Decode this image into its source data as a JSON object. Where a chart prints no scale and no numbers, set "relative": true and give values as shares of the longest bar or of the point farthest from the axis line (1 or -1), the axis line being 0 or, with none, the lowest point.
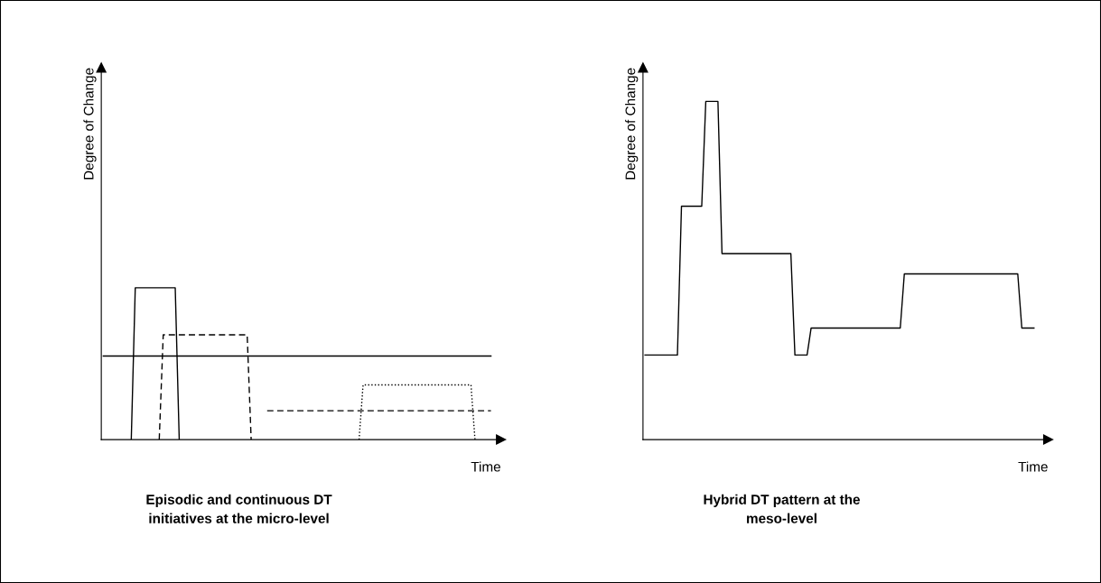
{
  "chart_data": [
    {
      "type": "line",
      "title": "Episodic and continuous DT\ninitiatives at the micro-level",
      "xlabel": "Time",
      "ylabel": "Degree of Change",
      "relative": true,
      "categories": [
        null,
        null,
        null,
        null,
        null,
        null,
        null,
        null,
        null,
        null,
        null,
        null,
        null,
        null,
        null,
        null,
        null,
        null,
        null,
        null,
        null,
        null,
        null,
        null,
        null,
        null,
        null,
        null,
        null,
        null,
        null,
        null,
        null,
        null,
        null,
        null,
        null,
        null,
        null,
        null,
        null,
        null,
        null,
        null,
        null,
        null,
        null,
        null,
        null,
        null,
        null,
        null,
        null,
        null,
        null,
        null,
        null,
        null,
        null,
        null,
        null,
        null,
        null,
        null,
        null,
        null,
        null,
        null,
        null,
        null,
        null,
        null,
        null,
        null,
        null,
        null,
        null,
        null,
        null,
        null,
        null,
        null,
        null,
        null,
        null,
        null,
        null,
        null,
        null,
        null,
        null,
        null,
        null,
        null,
        null,
        null,
        null,
        null,
        null,
        null
      ],
      "series": [
        {
          "color": "#000000",
          "line_style": "solid",
          "values": [
            null,
            null,
            null,
            null,
            null,
            null,
            null,
            0,
            1,
            1,
            1,
            1,
            1,
            1,
            1,
            1,
            1,
            1,
            1,
            0,
            null,
            null,
            null,
            null,
            null,
            null,
            null,
            null,
            null,
            null,
            null,
            null,
            null,
            null,
            null,
            null,
            null,
            null,
            null,
            null,
            null,
            null,
            null,
            null,
            null,
            null,
            null,
            null,
            null,
            null,
            null,
            null,
            null,
            null,
            null,
            null,
            null,
            null,
            null,
            null,
            null,
            null,
            null,
            null,
            null,
            null,
            null,
            null,
            null,
            null,
            null,
            null,
            null,
            null,
            null,
            null,
            null,
            null,
            null,
            null,
            null,
            null,
            null,
            null,
            null,
            null,
            null,
            null,
            null,
            null,
            null,
            null,
            null,
            null,
            null,
            null,
            null,
            null,
            null,
            null
          ]
        },
        {
          "color": "#000000",
          "line_style": "dashed",
          "values": [
            null,
            null,
            null,
            null,
            null,
            null,
            null,
            null,
            null,
            null,
            null,
            null,
            null,
            null,
            0,
            0.69,
            0.69,
            0.69,
            0.69,
            0.69,
            0.69,
            0.69,
            0.69,
            0.69,
            0.69,
            0.69,
            0.69,
            0.69,
            0.69,
            0.69,
            0.69,
            0.69,
            0.69,
            0.69,
            0.69,
            0.69,
            0.69,
            0,
            null,
            null,
            null,
            null,
            null,
            null,
            null,
            null,
            null,
            null,
            null,
            null,
            null,
            null,
            null,
            null,
            null,
            null,
            null,
            null,
            null,
            null,
            null,
            null,
            null,
            null,
            null,
            null,
            null,
            null,
            null,
            null,
            null,
            null,
            null,
            null,
            null,
            null,
            null,
            null,
            null,
            null,
            null,
            null,
            null,
            null,
            null,
            null,
            null,
            null,
            null,
            null,
            null,
            null,
            null,
            null,
            null,
            null,
            null,
            null,
            null,
            null
          ]
        },
        {
          "color": "#000000",
          "line_style": "solid",
          "values": [
            0.55,
            0.55,
            0.55,
            0.55,
            0.55,
            0.55,
            0.55,
            0.55,
            0.55,
            0.55,
            0.55,
            0.55,
            0.55,
            0.55,
            0.55,
            0.55,
            0.55,
            0.55,
            0.55,
            0.55,
            0.55,
            0.55,
            0.55,
            0.55,
            0.55,
            0.55,
            0.55,
            0.55,
            0.55,
            0.55,
            0.55,
            0.55,
            0.55,
            0.55,
            0.55,
            0.55,
            0.55,
            0.55,
            0.55,
            0.55,
            0.55,
            0.55,
            0.55,
            0.55,
            0.55,
            0.55,
            0.55,
            0.55,
            0.55,
            0.55,
            0.55,
            0.55,
            0.55,
            0.55,
            0.55,
            0.55,
            0.55,
            0.55,
            0.55,
            0.55,
            0.55,
            0.55,
            0.55,
            0.55,
            0.55,
            0.55,
            0.55,
            0.55,
            0.55,
            0.55,
            0.55,
            0.55,
            0.55,
            0.55,
            0.55,
            0.55,
            0.55,
            0.55,
            0.55,
            0.55,
            0.55,
            0.55,
            0.55,
            0.55,
            0.55,
            0.55,
            0.55,
            0.55,
            0.55,
            0.55,
            0.55,
            0.55,
            0.55,
            0.55,
            0.55,
            0.55,
            0.55,
            0.55,
            null,
            null
          ]
        },
        {
          "color": "#000000",
          "line_style": "dashed",
          "values": [
            null,
            null,
            null,
            null,
            null,
            null,
            null,
            null,
            null,
            null,
            null,
            null,
            null,
            null,
            null,
            null,
            null,
            null,
            null,
            null,
            null,
            null,
            null,
            null,
            null,
            null,
            null,
            null,
            null,
            null,
            null,
            null,
            null,
            null,
            null,
            null,
            null,
            null,
            null,
            null,
            null,
            0.19,
            0.19,
            0.19,
            0.19,
            0.19,
            0.19,
            0.19,
            0.19,
            0.19,
            0.19,
            0.19,
            0.19,
            0.19,
            0.19,
            0.19,
            0.19,
            0.19,
            0.19,
            0.19,
            0.19,
            0.19,
            0.19,
            0.19,
            0.19,
            0.19,
            0.19,
            0.19,
            0.19,
            0.19,
            0.19,
            0.19,
            0.19,
            0.19,
            0.19,
            0.19,
            0.19,
            0.19,
            0.19,
            0.19,
            0.19,
            0.19,
            0.19,
            0.19,
            0.19,
            0.19,
            0.19,
            0.19,
            0.19,
            0.19,
            0.19,
            0.19,
            0.19,
            0.19,
            0.19,
            0.19,
            0.19,
            0.19,
            null,
            null
          ]
        },
        {
          "color": "#000000",
          "line_style": "dotted",
          "values": [
            null,
            null,
            null,
            null,
            null,
            null,
            null,
            null,
            null,
            null,
            null,
            null,
            null,
            null,
            null,
            null,
            null,
            null,
            null,
            null,
            null,
            null,
            null,
            null,
            null,
            null,
            null,
            null,
            null,
            null,
            null,
            null,
            null,
            null,
            null,
            null,
            null,
            null,
            null,
            null,
            null,
            null,
            null,
            null,
            null,
            null,
            null,
            null,
            null,
            null,
            null,
            null,
            null,
            null,
            null,
            null,
            null,
            null,
            null,
            null,
            null,
            null,
            null,
            null,
            0,
            0.36,
            0.36,
            0.36,
            0.36,
            0.36,
            0.36,
            0.36,
            0.36,
            0.36,
            0.36,
            0.36,
            0.36,
            0.36,
            0.36,
            0.36,
            0.36,
            0.36,
            0.36,
            0.36,
            0.36,
            0.36,
            0.36,
            0.36,
            0.36,
            0.36,
            0.36,
            0.36,
            0.36,
            0,
            null,
            null,
            null,
            null,
            null,
            null
          ]
        }
      ]
    },
    {
      "type": "line",
      "title": "Hybrid DT pattern at the\nmeso-level",
      "xlabel": "Time",
      "ylabel": "Degree of Change",
      "relative": true,
      "categories": [
        null,
        null,
        null,
        null,
        null,
        null,
        null,
        null,
        null,
        null,
        null,
        null,
        null,
        null,
        null,
        null,
        null,
        null,
        null,
        null,
        null,
        null,
        null,
        null,
        null,
        null,
        null,
        null,
        null,
        null,
        null,
        null,
        null,
        null,
        null,
        null,
        null,
        null,
        null,
        null,
        null,
        null,
        null,
        null,
        null,
        null,
        null,
        null,
        null,
        null,
        null,
        null,
        null,
        null,
        null,
        null,
        null,
        null,
        null,
        null,
        null,
        null,
        null,
        null,
        null,
        null,
        null,
        null,
        null,
        null,
        null,
        null,
        null,
        null,
        null,
        null,
        null,
        null,
        null,
        null,
        null,
        null,
        null,
        null,
        null,
        null,
        null,
        null,
        null,
        null,
        null,
        null,
        null,
        null,
        null,
        null,
        null,
        null,
        null,
        null
      ],
      "series": [
        {
          "color": "#000000",
          "line_style": "solid",
          "values": [
            0.25,
            0.25,
            0.25,
            0.25,
            0.25,
            0.25,
            0.25,
            0.25,
            0.25,
            0.69,
            0.69,
            0.69,
            0.69,
            0.69,
            0.69,
            1,
            1,
            1,
            1,
            0.55,
            0.55,
            0.55,
            0.55,
            0.55,
            0.55,
            0.55,
            0.55,
            0.55,
            0.55,
            0.55,
            0.55,
            0.55,
            0.55,
            0.55,
            0.55,
            0.55,
            0.55,
            0.25,
            0.25,
            0.25,
            0.25,
            0.33,
            0.33,
            0.33,
            0.33,
            0.33,
            0.33,
            0.33,
            0.33,
            0.33,
            0.33,
            0.33,
            0.33,
            0.33,
            0.33,
            0.33,
            0.33,
            0.33,
            0.33,
            0.33,
            0.33,
            0.33,
            0.33,
            0.33,
            0.49,
            0.49,
            0.49,
            0.49,
            0.49,
            0.49,
            0.49,
            0.49,
            0.49,
            0.49,
            0.49,
            0.49,
            0.49,
            0.49,
            0.49,
            0.49,
            0.49,
            0.49,
            0.49,
            0.49,
            0.49,
            0.49,
            0.49,
            0.49,
            0.49,
            0.49,
            0.49,
            0.49,
            0.49,
            0.33,
            0.33,
            0.33,
            0.33,
            null,
            null,
            null
          ]
        }
      ]
    }
  ]
}
